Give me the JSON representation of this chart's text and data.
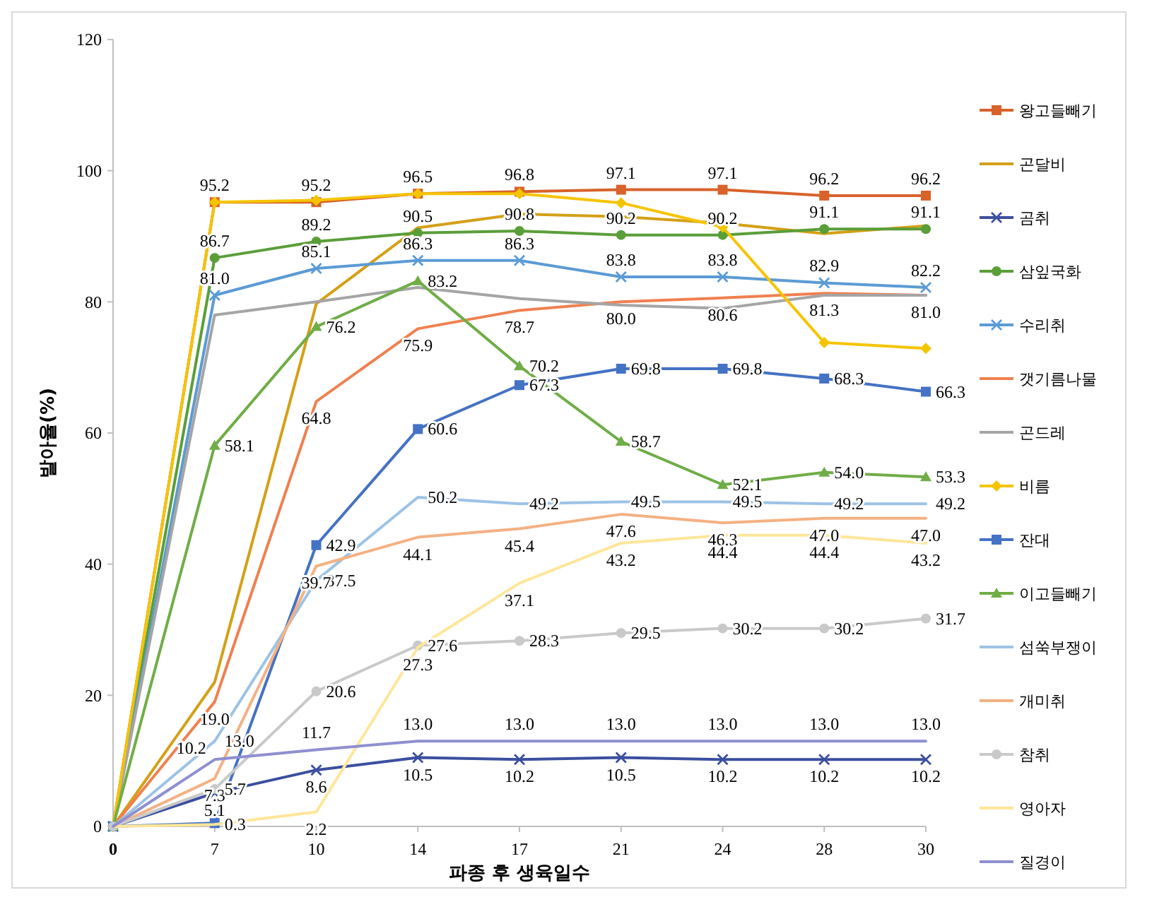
{
  "chart_data": {
    "type": "line",
    "xlabel": "파종 후 생육일수",
    "ylabel": "발아율(%)",
    "categories": [
      "0",
      "7",
      "10",
      "14",
      "17",
      "21",
      "24",
      "28",
      "30"
    ],
    "ylim": [
      0,
      120
    ],
    "yticks": [
      0,
      20,
      40,
      60,
      80,
      100,
      120
    ],
    "grid": false,
    "legend": "right",
    "series": [
      {
        "name": "왕고들빼기",
        "color": "#d9622b",
        "marker": "square",
        "values": [
          0,
          95.2,
          95.2,
          96.5,
          96.8,
          97.1,
          97.1,
          96.2,
          96.2
        ],
        "value_labels": [
          null,
          "95.2",
          "95.2",
          "96.5",
          "96.8",
          "97.1",
          "97.1",
          "96.2",
          "96.2"
        ]
      },
      {
        "name": "곤달비",
        "color": "#d4a017",
        "marker": "none",
        "values": [
          0,
          22,
          79.7,
          91.3,
          93.4,
          93,
          92,
          90.4,
          91.6
        ]
      },
      {
        "name": "곰취",
        "color": "#3b4fa0",
        "marker": "cross",
        "values": [
          0,
          5.1,
          8.6,
          10.5,
          10.2,
          10.5,
          10.2,
          10.2,
          10.2
        ],
        "value_labels": [
          null,
          "5.1",
          "8.6",
          "10.5",
          "10.2",
          "10.5",
          "10.2",
          "10.2",
          "10.2"
        ]
      },
      {
        "name": "삼잎국화",
        "color": "#5a9e3a",
        "marker": "circle",
        "values": [
          0,
          86.7,
          89.2,
          90.5,
          90.8,
          90.2,
          90.2,
          91.1,
          91.1
        ],
        "value_labels": [
          null,
          "86.7",
          "89.2",
          "90.5",
          "90.8",
          "90.2",
          "90.2",
          "91.1",
          "91.1"
        ]
      },
      {
        "name": "수리취",
        "color": "#5b9bd5",
        "marker": "cross",
        "values": [
          0,
          81.0,
          85.1,
          86.3,
          86.3,
          83.8,
          83.8,
          82.9,
          82.2
        ],
        "value_labels": [
          null,
          "81.0",
          "85.1",
          "86.3",
          "86.3",
          "83.8",
          "83.8",
          "82.9",
          "82.2"
        ]
      },
      {
        "name": "갯기름나물",
        "color": "#f08050",
        "marker": "none",
        "values": [
          0,
          19.0,
          64.8,
          75.9,
          78.7,
          80.0,
          80.6,
          81.3,
          81.0
        ],
        "value_labels": [
          null,
          "19.0",
          "64.8",
          "75.9",
          "78.7",
          "80.0",
          "80.6",
          "81.3",
          "81.0"
        ]
      },
      {
        "name": "곤드레",
        "color": "#a5a5a5",
        "marker": "none",
        "values": [
          0,
          78,
          80,
          82.2,
          80.5,
          79.5,
          79,
          81,
          81
        ]
      },
      {
        "name": "비름",
        "color": "#f5c400",
        "marker": "diamond",
        "values": [
          0,
          95.2,
          95.5,
          96.5,
          96.5,
          95.1,
          91.4,
          73.8,
          72.9
        ]
      },
      {
        "name": "잔대",
        "color": "#4472c4",
        "marker": "square",
        "values": [
          0,
          0.5,
          42.9,
          60.6,
          67.3,
          69.8,
          69.8,
          68.3,
          66.3
        ],
        "value_labels": [
          null,
          null,
          "42.9",
          "60.6",
          "67.3",
          "69.8",
          "69.8",
          "68.3",
          "66.3"
        ]
      },
      {
        "name": "이고들빼기",
        "color": "#70ad47",
        "marker": "triangle",
        "values": [
          0,
          58.1,
          76.2,
          83.2,
          70.2,
          58.7,
          52.1,
          54.0,
          53.3
        ],
        "value_labels": [
          null,
          "58.1",
          "76.2",
          "83.2",
          "70.2",
          "58.7",
          "52.1",
          "54.0",
          "53.3"
        ]
      },
      {
        "name": "섬쑥부쟁이",
        "color": "#9dc3e6",
        "marker": "none",
        "values": [
          0,
          13.0,
          37.5,
          50.2,
          49.2,
          49.5,
          49.5,
          49.2,
          49.2
        ],
        "value_labels": [
          null,
          "13.0",
          "37.5",
          "50.2",
          "49.2",
          "49.5",
          "49.5",
          "49.2",
          "49.2"
        ]
      },
      {
        "name": "개미취",
        "color": "#f4b183",
        "marker": "none",
        "values": [
          0,
          7.3,
          39.7,
          44.1,
          45.4,
          47.6,
          46.3,
          47.0,
          47.0
        ],
        "value_labels": [
          null,
          "7.3",
          "39.7",
          "44.1",
          "45.4",
          "47.6",
          "46.3",
          "47.0",
          "47.0"
        ]
      },
      {
        "name": "참취",
        "color": "#c9c9c9",
        "marker": "circle",
        "values": [
          0,
          5.7,
          20.6,
          27.6,
          28.3,
          29.5,
          30.2,
          30.2,
          31.7
        ],
        "value_labels": [
          null,
          "5.7",
          "20.6",
          "27.6",
          "28.3",
          "29.5",
          "30.2",
          "30.2",
          "31.7"
        ]
      },
      {
        "name": "영아자",
        "color": "#ffe699",
        "marker": "none",
        "values": [
          0,
          0.3,
          2.2,
          27.3,
          37.1,
          43.2,
          44.4,
          44.4,
          43.2
        ],
        "value_labels": [
          null,
          "0.3",
          "2.2",
          "27.3",
          "37.1",
          "43.2",
          "44.4",
          "44.4",
          "43.2"
        ]
      },
      {
        "name": "질경이",
        "color": "#8f8fd0",
        "marker": "none",
        "values": [
          0,
          10.2,
          11.7,
          13.0,
          13.0,
          13.0,
          13.0,
          13.0,
          13.0
        ],
        "value_labels": [
          null,
          "10.2",
          "11.7",
          "13.0",
          "13.0",
          "13.0",
          "13.0",
          "13.0",
          "13.0"
        ]
      }
    ]
  }
}
